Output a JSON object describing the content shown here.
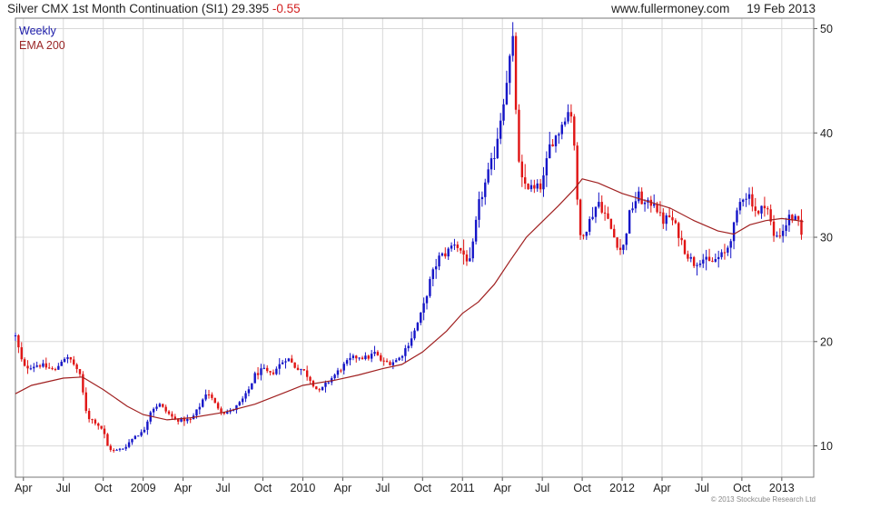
{
  "header": {
    "title": "Silver CMX 1st Month Continuation (SI1) 29.395",
    "change": "-0.55",
    "site": "www.fullermoney.com",
    "date": "19 Feb 2013"
  },
  "legend": {
    "frequency": "Weekly",
    "ema": "EMA 200"
  },
  "copyright": "© 2013 Stockcube Research Ltd",
  "colors": {
    "up": "#1515c8",
    "down": "#e01414",
    "ema": "#a02020",
    "grid": "#d8d8d8"
  },
  "chart_data": {
    "type": "candlestick",
    "title": "Silver CMX 1st Month Continuation (SI1) 29.395",
    "ylim": [
      7,
      51
    ],
    "xlim": [
      2008.2,
      2013.2
    ],
    "grid": true,
    "y_ticks": [
      10,
      20,
      30,
      40,
      50
    ],
    "x_ticks": [
      {
        "label": "Apr",
        "t": 2008.25
      },
      {
        "label": "Jul",
        "t": 2008.5
      },
      {
        "label": "Oct",
        "t": 2008.75
      },
      {
        "label": "2009",
        "t": 2009.0
      },
      {
        "label": "Apr",
        "t": 2009.25
      },
      {
        "label": "Jul",
        "t": 2009.5
      },
      {
        "label": "Oct",
        "t": 2009.75
      },
      {
        "label": "2010",
        "t": 2010.0
      },
      {
        "label": "Apr",
        "t": 2010.25
      },
      {
        "label": "Jul",
        "t": 2010.5
      },
      {
        "label": "Oct",
        "t": 2010.75
      },
      {
        "label": "2011",
        "t": 2011.0
      },
      {
        "label": "Apr",
        "t": 2011.25
      },
      {
        "label": "Jul",
        "t": 2011.5
      },
      {
        "label": "Oct",
        "t": 2011.75
      },
      {
        "label": "2012",
        "t": 2012.0
      },
      {
        "label": "Apr",
        "t": 2012.25
      },
      {
        "label": "Jul",
        "t": 2012.5
      },
      {
        "label": "Oct",
        "t": 2012.75
      },
      {
        "label": "2013",
        "t": 2013.0
      }
    ],
    "close": [
      [
        2008.2,
        20.5
      ],
      [
        2008.25,
        17.5
      ],
      [
        2008.35,
        17.8
      ],
      [
        2008.45,
        17.2
      ],
      [
        2008.5,
        18.5
      ],
      [
        2008.55,
        18.2
      ],
      [
        2008.6,
        17.0
      ],
      [
        2008.65,
        12.8
      ],
      [
        2008.7,
        12.3
      ],
      [
        2008.75,
        11.5
      ],
      [
        2008.78,
        9.8
      ],
      [
        2008.82,
        9.5
      ],
      [
        2008.88,
        9.8
      ],
      [
        2008.95,
        11.0
      ],
      [
        2009.0,
        11.3
      ],
      [
        2009.05,
        13.5
      ],
      [
        2009.1,
        14.0
      ],
      [
        2009.15,
        13.2
      ],
      [
        2009.2,
        12.5
      ],
      [
        2009.3,
        12.5
      ],
      [
        2009.35,
        13.7
      ],
      [
        2009.4,
        15.3
      ],
      [
        2009.45,
        14.0
      ],
      [
        2009.5,
        13.2
      ],
      [
        2009.55,
        13.3
      ],
      [
        2009.6,
        14.0
      ],
      [
        2009.65,
        15.0
      ],
      [
        2009.7,
        16.8
      ],
      [
        2009.75,
        17.3
      ],
      [
        2009.8,
        16.8
      ],
      [
        2009.85,
        17.7
      ],
      [
        2009.9,
        18.5
      ],
      [
        2009.95,
        17.6
      ],
      [
        2010.0,
        17.3
      ],
      [
        2010.05,
        16.3
      ],
      [
        2010.1,
        15.1
      ],
      [
        2010.15,
        16.0
      ],
      [
        2010.2,
        16.8
      ],
      [
        2010.25,
        17.6
      ],
      [
        2010.3,
        18.3
      ],
      [
        2010.35,
        18.6
      ],
      [
        2010.4,
        18.4
      ],
      [
        2010.45,
        18.9
      ],
      [
        2010.5,
        18.0
      ],
      [
        2010.55,
        18.0
      ],
      [
        2010.6,
        18.3
      ],
      [
        2010.65,
        19.5
      ],
      [
        2010.7,
        21.0
      ],
      [
        2010.75,
        23.0
      ],
      [
        2010.8,
        26.0
      ],
      [
        2010.85,
        28.0
      ],
      [
        2010.9,
        28.5
      ],
      [
        2010.95,
        29.5
      ],
      [
        2011.0,
        28.5
      ],
      [
        2011.05,
        27.5
      ],
      [
        2011.1,
        33.0
      ],
      [
        2011.15,
        35.5
      ],
      [
        2011.2,
        38.0
      ],
      [
        2011.25,
        42.5
      ],
      [
        2011.3,
        47.5
      ],
      [
        2011.32,
        49.0
      ],
      [
        2011.34,
        40.0
      ],
      [
        2011.36,
        35.5
      ],
      [
        2011.4,
        35.0
      ],
      [
        2011.45,
        34.5
      ],
      [
        2011.5,
        35.0
      ],
      [
        2011.55,
        39.0
      ],
      [
        2011.6,
        40.0
      ],
      [
        2011.65,
        42.0
      ],
      [
        2011.68,
        42.0
      ],
      [
        2011.7,
        39.0
      ],
      [
        2011.73,
        30.0
      ],
      [
        2011.78,
        31.0
      ],
      [
        2011.85,
        33.5
      ],
      [
        2011.9,
        32.0
      ],
      [
        2011.95,
        30.0
      ],
      [
        2012.0,
        28.5
      ],
      [
        2012.05,
        32.5
      ],
      [
        2012.1,
        34.0
      ],
      [
        2012.15,
        33.0
      ],
      [
        2012.2,
        33.5
      ],
      [
        2012.25,
        31.5
      ],
      [
        2012.3,
        32.0
      ],
      [
        2012.35,
        30.5
      ],
      [
        2012.4,
        28.5
      ],
      [
        2012.45,
        27.5
      ],
      [
        2012.5,
        28.0
      ],
      [
        2012.55,
        27.5
      ],
      [
        2012.6,
        28.0
      ],
      [
        2012.65,
        28.5
      ],
      [
        2012.7,
        31.0
      ],
      [
        2012.75,
        34.0
      ],
      [
        2012.8,
        34.0
      ],
      [
        2012.85,
        32.0
      ],
      [
        2012.9,
        33.5
      ],
      [
        2012.95,
        30.0
      ],
      [
        2013.0,
        30.5
      ],
      [
        2013.05,
        32.0
      ],
      [
        2013.1,
        31.5
      ],
      [
        2013.135,
        29.4
      ]
    ],
    "ema200": [
      [
        2008.2,
        15.0
      ],
      [
        2008.3,
        15.8
      ],
      [
        2008.5,
        16.5
      ],
      [
        2008.62,
        16.6
      ],
      [
        2008.75,
        15.4
      ],
      [
        2008.9,
        13.8
      ],
      [
        2009.0,
        13.0
      ],
      [
        2009.15,
        12.5
      ],
      [
        2009.3,
        12.7
      ],
      [
        2009.5,
        13.2
      ],
      [
        2009.7,
        14.0
      ],
      [
        2009.9,
        15.2
      ],
      [
        2010.0,
        15.8
      ],
      [
        2010.2,
        16.3
      ],
      [
        2010.35,
        16.8
      ],
      [
        2010.5,
        17.4
      ],
      [
        2010.62,
        17.8
      ],
      [
        2010.75,
        19.0
      ],
      [
        2010.9,
        21.0
      ],
      [
        2011.0,
        22.7
      ],
      [
        2011.1,
        23.8
      ],
      [
        2011.2,
        25.5
      ],
      [
        2011.3,
        27.8
      ],
      [
        2011.4,
        30.0
      ],
      [
        2011.5,
        31.5
      ],
      [
        2011.6,
        33.0
      ],
      [
        2011.7,
        34.6
      ],
      [
        2011.75,
        35.6
      ],
      [
        2011.85,
        35.2
      ],
      [
        2012.0,
        34.2
      ],
      [
        2012.15,
        33.5
      ],
      [
        2012.3,
        32.8
      ],
      [
        2012.45,
        31.6
      ],
      [
        2012.6,
        30.6
      ],
      [
        2012.7,
        30.3
      ],
      [
        2012.8,
        31.2
      ],
      [
        2012.9,
        31.6
      ],
      [
        2013.0,
        31.8
      ],
      [
        2013.1,
        31.6
      ],
      [
        2013.135,
        31.5
      ]
    ]
  }
}
